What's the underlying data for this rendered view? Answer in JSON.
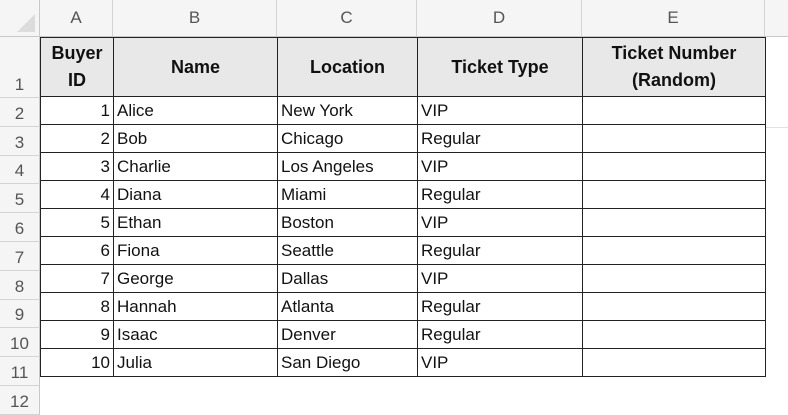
{
  "columns": [
    "A",
    "B",
    "C",
    "D",
    "E"
  ],
  "rows": [
    "1",
    "2",
    "3",
    "4",
    "5",
    "6",
    "7",
    "8",
    "9",
    "10",
    "11",
    "12"
  ],
  "headers": {
    "buyer_id": "Buyer ID",
    "name": "Name",
    "location": "Location",
    "ticket_type": "Ticket Type",
    "ticket_number": "Ticket Number (Random)"
  },
  "data": [
    {
      "id": "1",
      "name": "Alice",
      "location": "New York",
      "type": "VIP",
      "ticket": ""
    },
    {
      "id": "2",
      "name": "Bob",
      "location": "Chicago",
      "type": "Regular",
      "ticket": ""
    },
    {
      "id": "3",
      "name": "Charlie",
      "location": "Los Angeles",
      "type": "VIP",
      "ticket": ""
    },
    {
      "id": "4",
      "name": "Diana",
      "location": "Miami",
      "type": "Regular",
      "ticket": ""
    },
    {
      "id": "5",
      "name": "Ethan",
      "location": "Boston",
      "type": "VIP",
      "ticket": ""
    },
    {
      "id": "6",
      "name": "Fiona",
      "location": "Seattle",
      "type": "Regular",
      "ticket": ""
    },
    {
      "id": "7",
      "name": "George",
      "location": "Dallas",
      "type": "VIP",
      "ticket": ""
    },
    {
      "id": "8",
      "name": "Hannah",
      "location": "Atlanta",
      "type": "Regular",
      "ticket": ""
    },
    {
      "id": "9",
      "name": "Isaac",
      "location": "Denver",
      "type": "Regular",
      "ticket": ""
    },
    {
      "id": "10",
      "name": "Julia",
      "location": "San Diego",
      "type": "VIP",
      "ticket": ""
    }
  ]
}
